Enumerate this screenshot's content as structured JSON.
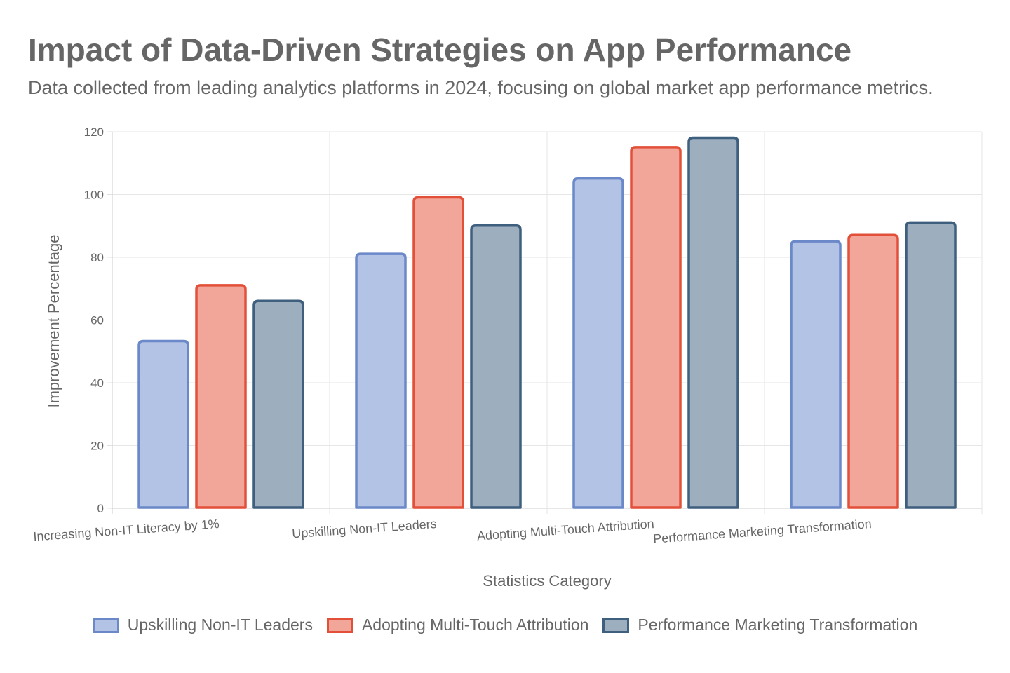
{
  "title": "Impact of Data-Driven Strategies on App Performance",
  "subtitle": "Data collected from leading analytics platforms in 2024, focusing on global market app performance metrics.",
  "chart_data": {
    "type": "bar",
    "categories": [
      "Increasing Non-IT Literacy by 1%",
      "Upskilling Non-IT Leaders",
      "Adopting Multi-Touch Attribution",
      "Performance Marketing Transformation"
    ],
    "series": [
      {
        "name": "Upskilling Non-IT Leaders",
        "values": [
          53.3,
          81.1,
          105.1,
          85.1
        ],
        "fill": "#b3c3e5",
        "stroke": "#6b88c9"
      },
      {
        "name": "Adopting Multi-Touch Attribution",
        "values": [
          71.1,
          99.1,
          115.1,
          87.1
        ],
        "fill": "#f2a69a",
        "stroke": "#e2503a"
      },
      {
        "name": "Performance Marketing Transformation",
        "values": [
          66.1,
          90.1,
          118.1,
          91.1
        ],
        "fill": "#9dafbf",
        "stroke": "#3e5f7e"
      }
    ],
    "title": "Impact of Data-Driven Strategies on App Performance",
    "xlabel": "Statistics Category",
    "ylabel": "Improvement Percentage",
    "ylim": [
      0,
      120
    ],
    "yticks": [
      "0",
      "20",
      "40",
      "60",
      "80",
      "100",
      "120"
    ],
    "grid": true,
    "legend": "bottom"
  }
}
